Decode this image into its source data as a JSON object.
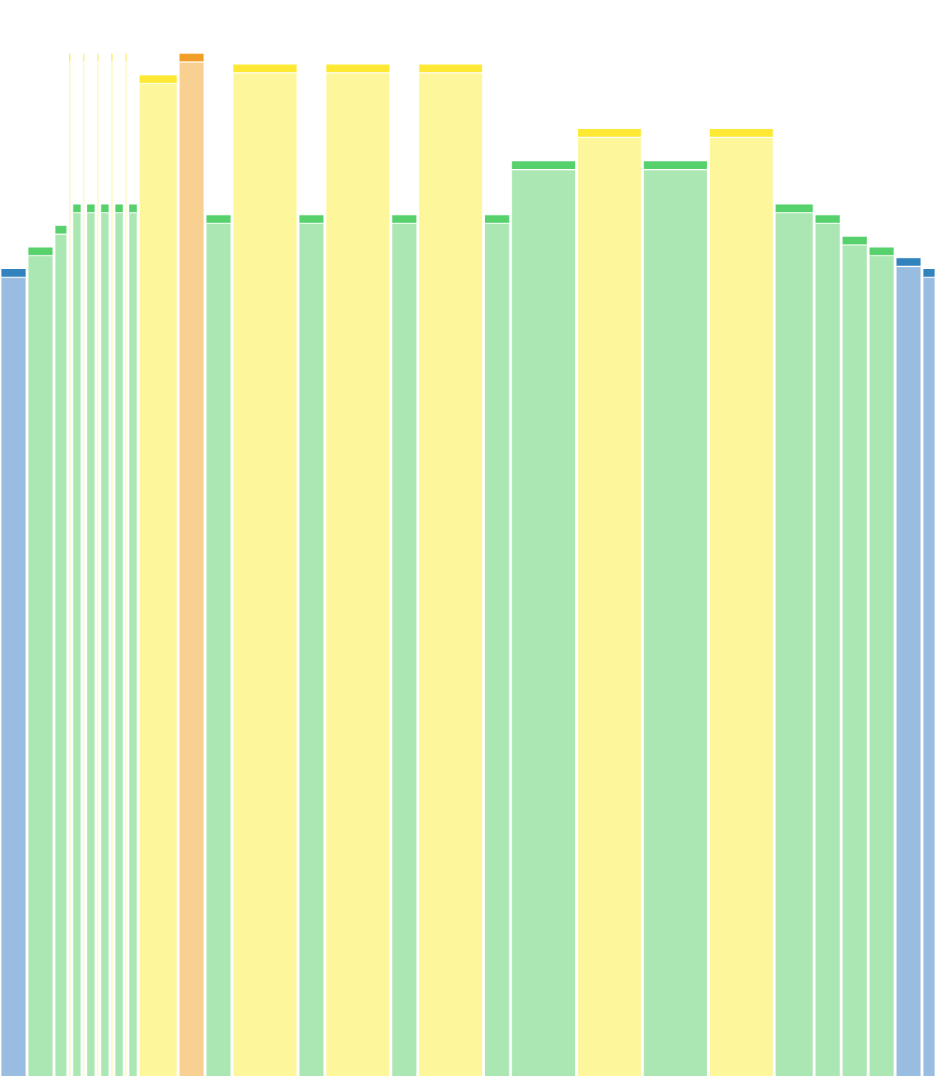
{
  "chart_data": {
    "type": "bar",
    "title": "",
    "xlabel": "",
    "ylabel": "",
    "ylim": [
      0,
      100
    ],
    "grid": false,
    "legend": "none",
    "axes_visible": false,
    "palette": {
      "blue": {
        "fill": "#99bde0",
        "cap": "#3182bd"
      },
      "green": {
        "fill": "#abe7b3",
        "cap": "#56d16b"
      },
      "yellow": {
        "fill": "#fdf69b",
        "cap": "#fde934"
      },
      "orange": {
        "fill": "#f8d192",
        "cap": "#f19d28"
      }
    },
    "bars": [
      {
        "value": 75.0,
        "width": 2.6,
        "color": "blue"
      },
      {
        "value": 77.0,
        "width": 2.6,
        "color": "green"
      },
      {
        "value": 79.0,
        "width": 1.2,
        "color": "green"
      },
      {
        "value": 95.0,
        "width": 0.1,
        "color": "yellow"
      },
      {
        "value": 81.0,
        "width": 0.8,
        "color": "green"
      },
      {
        "value": 95.0,
        "width": 0.1,
        "color": "yellow"
      },
      {
        "value": 81.0,
        "width": 0.8,
        "color": "green"
      },
      {
        "value": 95.0,
        "width": 0.1,
        "color": "yellow"
      },
      {
        "value": 81.0,
        "width": 0.8,
        "color": "green"
      },
      {
        "value": 95.0,
        "width": 0.1,
        "color": "yellow"
      },
      {
        "value": 81.0,
        "width": 0.8,
        "color": "green"
      },
      {
        "value": 95.0,
        "width": 0.1,
        "color": "yellow"
      },
      {
        "value": 81.0,
        "width": 0.8,
        "color": "green"
      },
      {
        "value": 93.0,
        "width": 4.0,
        "color": "yellow"
      },
      {
        "value": 95.0,
        "width": 2.6,
        "color": "orange"
      },
      {
        "value": 80.0,
        "width": 2.6,
        "color": "green"
      },
      {
        "value": 94.0,
        "width": 6.8,
        "color": "yellow"
      },
      {
        "value": 80.0,
        "width": 2.6,
        "color": "green"
      },
      {
        "value": 94.0,
        "width": 6.8,
        "color": "yellow"
      },
      {
        "value": 80.0,
        "width": 2.6,
        "color": "green"
      },
      {
        "value": 94.0,
        "width": 6.8,
        "color": "yellow"
      },
      {
        "value": 80.0,
        "width": 2.6,
        "color": "green"
      },
      {
        "value": 85.0,
        "width": 6.8,
        "color": "green"
      },
      {
        "value": 88.0,
        "width": 6.8,
        "color": "yellow"
      },
      {
        "value": 85.0,
        "width": 6.8,
        "color": "green"
      },
      {
        "value": 88.0,
        "width": 6.8,
        "color": "yellow"
      },
      {
        "value": 81.0,
        "width": 4.0,
        "color": "green"
      },
      {
        "value": 80.0,
        "width": 2.6,
        "color": "green"
      },
      {
        "value": 78.0,
        "width": 2.6,
        "color": "green"
      },
      {
        "value": 77.0,
        "width": 2.6,
        "color": "green"
      },
      {
        "value": 76.0,
        "width": 2.6,
        "color": "blue"
      },
      {
        "value": 75.0,
        "width": 1.2,
        "color": "blue"
      }
    ]
  }
}
